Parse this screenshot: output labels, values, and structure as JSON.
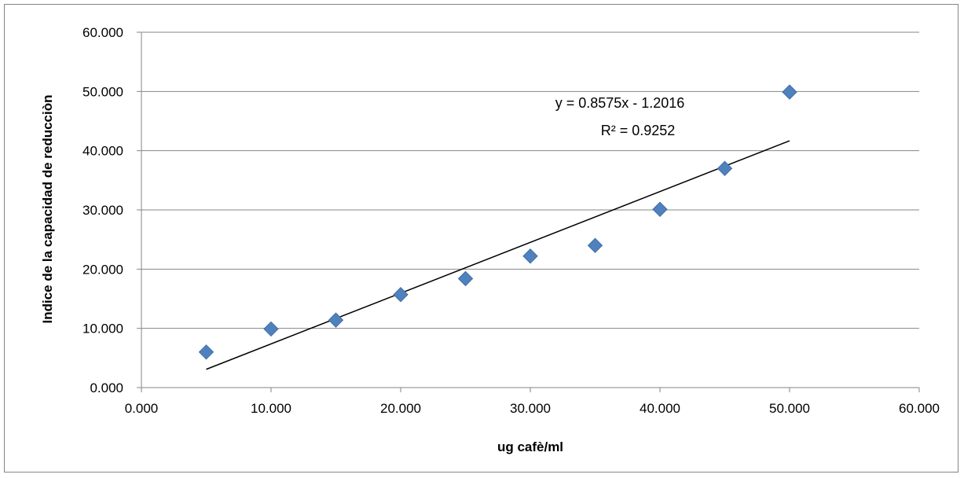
{
  "chart_data": {
    "type": "scatter",
    "title": "",
    "xlabel": "ug cafè/ml",
    "ylabel": "Indice de la capacidad de reducciòn",
    "xlim": [
      0,
      60
    ],
    "ylim": [
      0,
      60
    ],
    "x_ticks": [
      0,
      10,
      20,
      30,
      40,
      50,
      60
    ],
    "y_ticks": [
      0,
      10,
      20,
      30,
      40,
      50,
      60
    ],
    "x_tick_labels": [
      "0.000",
      "10.000",
      "20.000",
      "30.000",
      "40.000",
      "50.000",
      "60.000"
    ],
    "y_tick_labels": [
      "0.000",
      "10.000",
      "20.000",
      "30.000",
      "40.000",
      "50.000",
      "60.000"
    ],
    "grid": "horizontal",
    "marker": "diamond",
    "series": [
      {
        "x": [
          5,
          10,
          15,
          20,
          25,
          30,
          35,
          40,
          45,
          50
        ],
        "y": [
          6.0,
          9.9,
          11.4,
          15.7,
          18.4,
          22.2,
          24.0,
          30.1,
          37.0,
          49.9
        ],
        "color": "#4f81bd"
      }
    ],
    "trendline": {
      "type": "linear",
      "slope": 0.8575,
      "intercept": -1.2016,
      "x_range": [
        5,
        50
      ],
      "equation_label": "y = 0.8575x - 1.2016",
      "r2_label": "R² = 0.9252",
      "color": "#000000"
    }
  }
}
